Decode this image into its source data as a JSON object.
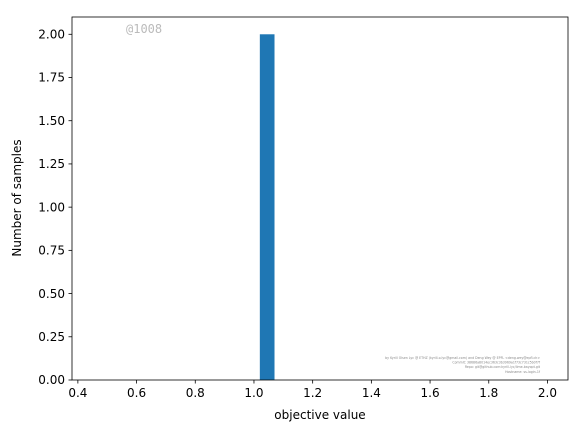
{
  "chart_data": {
    "type": "bar",
    "subtype": "histogram",
    "xlabel": "objective value",
    "ylabel": "Number of samples",
    "xlim": [
      0.38,
      2.07
    ],
    "ylim": [
      0.0,
      2.1
    ],
    "xticks": [
      "0.4",
      "0.6",
      "0.8",
      "1.0",
      "1.2",
      "1.4",
      "1.6",
      "1.8",
      "2.0"
    ],
    "yticks": [
      "0.00",
      "0.25",
      "0.50",
      "0.75",
      "1.00",
      "1.25",
      "1.50",
      "1.75",
      "2.00"
    ],
    "bins": [
      {
        "x0": 1.02,
        "x1": 1.07,
        "count": 2
      }
    ],
    "bar_color": "#1f77b4",
    "grid": false,
    "legend": "none"
  },
  "watermark": "@1008",
  "credits": [
    "by Kyrill Olsen Lyc @ ETHZ (kyrill.o.lyc@gmail.com) and Deng Wey @ EPFL <deng.wey@epfl.ch>",
    "Commit: 38686a8014ec363c3b3969a1f73c731c5b0f7f",
    "Repo: git@github.com:kyrill-lyc/lime-bayopt.git",
    "Hostname: ss-login-1f"
  ]
}
